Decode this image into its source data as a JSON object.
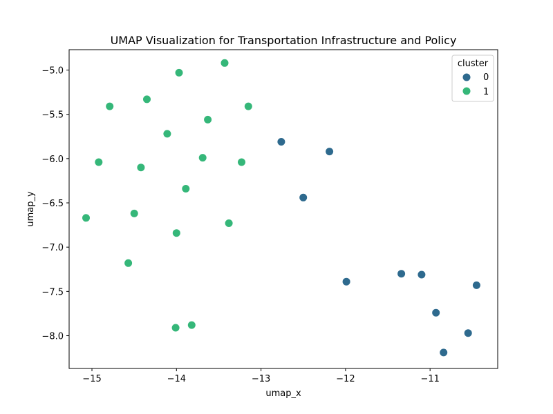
{
  "chart_data": {
    "type": "scatter",
    "title": "UMAP Visualization for Transportation Infrastructure and Policy",
    "xlabel": "umap_x",
    "ylabel": "umap_y",
    "xlim": [
      -15.27,
      -10.2
    ],
    "ylim": [
      -8.37,
      -4.77
    ],
    "xticks": [
      -15,
      -14,
      -13,
      -12,
      -11
    ],
    "yticks": [
      -5.0,
      -5.5,
      -6.0,
      -6.5,
      -7.0,
      -7.5,
      -8.0
    ],
    "xtick_labels": [
      "−15",
      "−14",
      "−13",
      "−12",
      "−11"
    ],
    "ytick_labels": [
      "−5.0",
      "−5.5",
      "−6.0",
      "−6.5",
      "−7.0",
      "−7.5",
      "−8.0"
    ],
    "grid": false,
    "legend": {
      "title": "cluster",
      "position": "top-right",
      "entries": [
        {
          "label": "0",
          "color": "#2e6a8e"
        },
        {
          "label": "1",
          "color": "#35b779"
        }
      ]
    },
    "series": [
      {
        "name": "0",
        "color": "#2e6a8e",
        "points": [
          {
            "x": -12.76,
            "y": -5.81
          },
          {
            "x": -12.19,
            "y": -5.92
          },
          {
            "x": -12.5,
            "y": -6.44
          },
          {
            "x": -11.99,
            "y": -7.39
          },
          {
            "x": -11.34,
            "y": -7.3
          },
          {
            "x": -11.1,
            "y": -7.31
          },
          {
            "x": -10.93,
            "y": -7.74
          },
          {
            "x": -10.84,
            "y": -8.19
          },
          {
            "x": -10.55,
            "y": -7.97
          },
          {
            "x": -10.45,
            "y": -7.43
          }
        ]
      },
      {
        "name": "1",
        "color": "#35b779",
        "points": [
          {
            "x": -13.97,
            "y": -5.03
          },
          {
            "x": -13.43,
            "y": -4.92
          },
          {
            "x": -14.35,
            "y": -5.33
          },
          {
            "x": -14.79,
            "y": -5.41
          },
          {
            "x": -13.15,
            "y": -5.41
          },
          {
            "x": -13.63,
            "y": -5.56
          },
          {
            "x": -14.11,
            "y": -5.72
          },
          {
            "x": -14.92,
            "y": -6.04
          },
          {
            "x": -14.42,
            "y": -6.1
          },
          {
            "x": -13.69,
            "y": -5.99
          },
          {
            "x": -13.23,
            "y": -6.04
          },
          {
            "x": -13.89,
            "y": -6.34
          },
          {
            "x": -14.5,
            "y": -6.62
          },
          {
            "x": -15.07,
            "y": -6.67
          },
          {
            "x": -13.38,
            "y": -6.73
          },
          {
            "x": -14.0,
            "y": -6.84
          },
          {
            "x": -14.57,
            "y": -7.18
          },
          {
            "x": -14.01,
            "y": -7.91
          },
          {
            "x": -13.82,
            "y": -7.88
          }
        ]
      }
    ]
  }
}
